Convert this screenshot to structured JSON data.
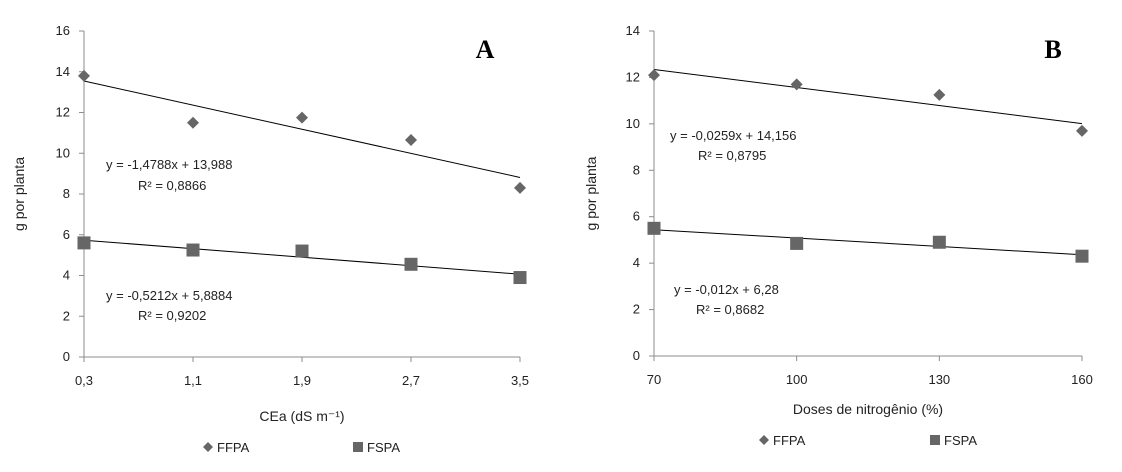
{
  "colors": {
    "series": "#666666",
    "trendline": "#000000",
    "axis": "#8c8c8c"
  },
  "chart_data": [
    {
      "type": "scatter",
      "panel_label": "A",
      "xlabel": "CEa (dS m⁻¹)",
      "ylabel": "g por planta",
      "x": [
        0.3,
        1.1,
        1.9,
        2.7,
        3.5
      ],
      "x_tick_labels": [
        "0,3",
        "1,1",
        "1,9",
        "2,7",
        "3,5"
      ],
      "xlim": [
        0.3,
        3.5
      ],
      "ylim": [
        0,
        16
      ],
      "y_ticks": [
        0,
        2,
        4,
        6,
        8,
        10,
        12,
        14,
        16
      ],
      "grid": false,
      "legend_position": "bottom",
      "series": [
        {
          "name": "FFPA",
          "marker": "diamond",
          "values": [
            13.8,
            11.5,
            11.75,
            10.65,
            8.3
          ],
          "trend": {
            "slope": -1.4788,
            "intercept": 13.988
          },
          "equation": "y = -1,4788x + 13,988",
          "r2": "R² = 0,8866"
        },
        {
          "name": "FSPA",
          "marker": "square",
          "values": [
            5.6,
            5.25,
            5.2,
            4.55,
            3.9
          ],
          "trend": {
            "slope": -0.5212,
            "intercept": 5.8884
          },
          "equation": "y = -0,5212x + 5,8884",
          "r2": "R² = 0,9202"
        }
      ]
    },
    {
      "type": "scatter",
      "panel_label": "B",
      "xlabel": "Doses de nitrogênio (%)",
      "ylabel": "g por planta",
      "x": [
        70,
        100,
        130,
        160
      ],
      "x_tick_labels": [
        "70",
        "100",
        "130",
        "160"
      ],
      "xlim": [
        70,
        160
      ],
      "ylim": [
        0,
        14
      ],
      "y_ticks": [
        0,
        2,
        4,
        6,
        8,
        10,
        12,
        14
      ],
      "grid": false,
      "legend_position": "bottom",
      "series": [
        {
          "name": "FFPA",
          "marker": "diamond",
          "values": [
            12.1,
            11.7,
            11.25,
            9.7
          ],
          "trend": {
            "slope": -0.0259,
            "intercept": 14.156
          },
          "equation": "y = -0,0259x + 14,156",
          "r2": "R² = 0,8795"
        },
        {
          "name": "FSPA",
          "marker": "square",
          "values": [
            5.5,
            4.85,
            4.9,
            4.3
          ],
          "trend": {
            "slope": -0.012,
            "intercept": 6.28
          },
          "equation": "y = -0,012x + 6,28",
          "r2": "R² = 0,8682"
        }
      ]
    }
  ]
}
